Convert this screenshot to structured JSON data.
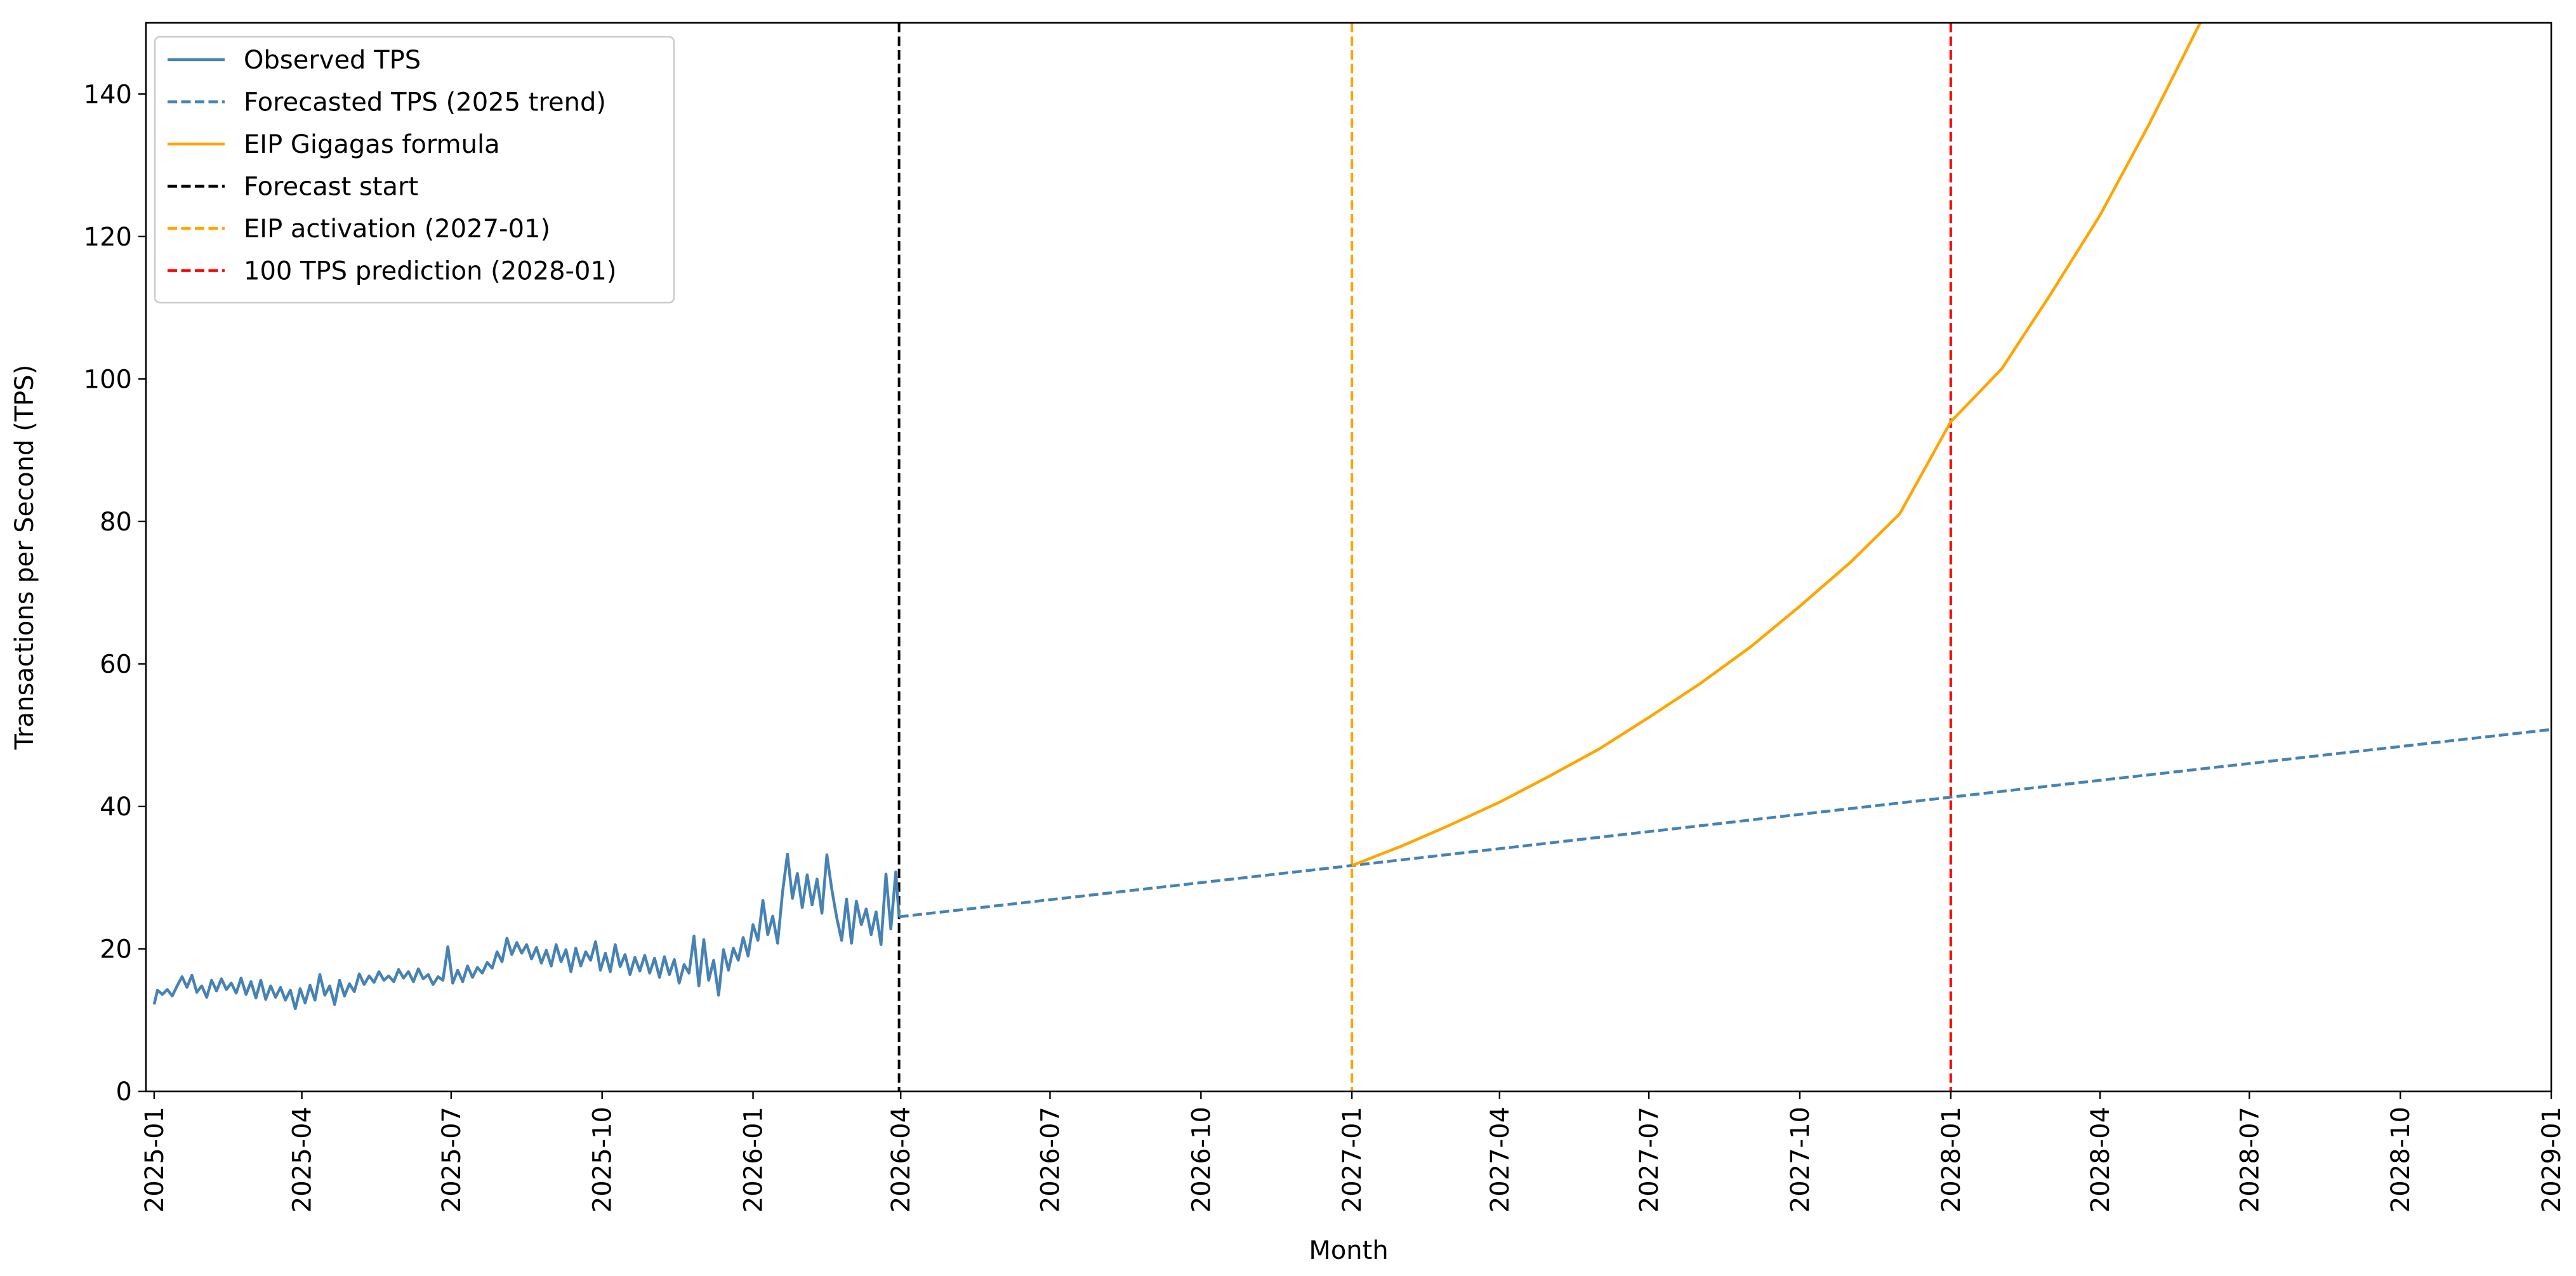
{
  "chart_data": {
    "type": "line",
    "title": "",
    "xlabel": "Month",
    "ylabel": "Transactions per Second (TPS)",
    "x_type": "date",
    "xlim": [
      "2024-12-27",
      "2029-01-01"
    ],
    "ylim": [
      0,
      150
    ],
    "x_ticks": [
      "2025-01",
      "2025-04",
      "2025-07",
      "2025-10",
      "2026-01",
      "2026-04",
      "2026-07",
      "2026-10",
      "2027-01",
      "2027-04",
      "2027-07",
      "2027-10",
      "2028-01",
      "2028-04",
      "2028-07",
      "2028-10",
      "2029-01"
    ],
    "y_ticks": [
      0,
      20,
      40,
      60,
      80,
      100,
      120,
      140
    ],
    "grid": false,
    "legend_position": "top-left",
    "series": [
      {
        "name": "Observed TPS",
        "color": "#4682B4",
        "style": "solid",
        "points": [
          [
            "2025-01-01",
            12.2
          ],
          [
            "2025-01-03",
            14.2
          ],
          [
            "2025-01-06",
            13.6
          ],
          [
            "2025-01-09",
            14.3
          ],
          [
            "2025-01-12",
            13.4
          ],
          [
            "2025-01-15",
            14.8
          ],
          [
            "2025-01-18",
            16.1
          ],
          [
            "2025-01-21",
            14.6
          ],
          [
            "2025-01-24",
            16.3
          ],
          [
            "2025-01-27",
            13.9
          ],
          [
            "2025-01-30",
            14.8
          ],
          [
            "2025-02-02",
            13.2
          ],
          [
            "2025-02-05",
            15.6
          ],
          [
            "2025-02-08",
            14.1
          ],
          [
            "2025-02-11",
            15.8
          ],
          [
            "2025-02-14",
            14.3
          ],
          [
            "2025-02-17",
            15.2
          ],
          [
            "2025-02-20",
            13.8
          ],
          [
            "2025-02-23",
            15.9
          ],
          [
            "2025-02-26",
            13.6
          ],
          [
            "2025-03-01",
            15.4
          ],
          [
            "2025-03-04",
            13.1
          ],
          [
            "2025-03-07",
            15.6
          ],
          [
            "2025-03-10",
            12.9
          ],
          [
            "2025-03-13",
            14.8
          ],
          [
            "2025-03-16",
            13.2
          ],
          [
            "2025-03-19",
            14.6
          ],
          [
            "2025-03-22",
            12.8
          ],
          [
            "2025-03-25",
            14.2
          ],
          [
            "2025-03-28",
            11.6
          ],
          [
            "2025-03-31",
            14.4
          ],
          [
            "2025-04-03",
            12.4
          ],
          [
            "2025-04-06",
            14.9
          ],
          [
            "2025-04-09",
            12.8
          ],
          [
            "2025-04-12",
            16.4
          ],
          [
            "2025-04-15",
            13.5
          ],
          [
            "2025-04-18",
            14.8
          ],
          [
            "2025-04-21",
            12.2
          ],
          [
            "2025-04-24",
            15.6
          ],
          [
            "2025-04-27",
            13.4
          ],
          [
            "2025-04-30",
            15.1
          ],
          [
            "2025-05-03",
            14.0
          ],
          [
            "2025-05-06",
            16.5
          ],
          [
            "2025-05-09",
            15.0
          ],
          [
            "2025-05-12",
            16.2
          ],
          [
            "2025-05-15",
            15.3
          ],
          [
            "2025-05-18",
            16.8
          ],
          [
            "2025-05-21",
            15.6
          ],
          [
            "2025-05-24",
            16.2
          ],
          [
            "2025-05-27",
            15.4
          ],
          [
            "2025-05-30",
            17.1
          ],
          [
            "2025-06-02",
            15.9
          ],
          [
            "2025-06-05",
            16.8
          ],
          [
            "2025-06-08",
            15.4
          ],
          [
            "2025-06-11",
            17.2
          ],
          [
            "2025-06-14",
            15.8
          ],
          [
            "2025-06-17",
            16.4
          ],
          [
            "2025-06-20",
            15.0
          ],
          [
            "2025-06-23",
            16.1
          ],
          [
            "2025-06-26",
            15.6
          ],
          [
            "2025-06-29",
            20.3
          ],
          [
            "2025-07-02",
            15.2
          ],
          [
            "2025-07-05",
            17.0
          ],
          [
            "2025-07-08",
            15.4
          ],
          [
            "2025-07-11",
            17.6
          ],
          [
            "2025-07-14",
            16.0
          ],
          [
            "2025-07-17",
            17.4
          ],
          [
            "2025-07-20",
            16.6
          ],
          [
            "2025-07-23",
            18.1
          ],
          [
            "2025-07-26",
            17.3
          ],
          [
            "2025-07-29",
            19.6
          ],
          [
            "2025-08-01",
            18.2
          ],
          [
            "2025-08-04",
            21.5
          ],
          [
            "2025-08-07",
            19.2
          ],
          [
            "2025-08-10",
            20.9
          ],
          [
            "2025-08-13",
            19.4
          ],
          [
            "2025-08-16",
            20.6
          ],
          [
            "2025-08-19",
            18.6
          ],
          [
            "2025-08-22",
            20.2
          ],
          [
            "2025-08-25",
            18.0
          ],
          [
            "2025-08-28",
            19.8
          ],
          [
            "2025-08-31",
            17.6
          ],
          [
            "2025-09-03",
            20.6
          ],
          [
            "2025-09-06",
            18.2
          ],
          [
            "2025-09-09",
            19.9
          ],
          [
            "2025-09-12",
            16.8
          ],
          [
            "2025-09-15",
            20.1
          ],
          [
            "2025-09-18",
            17.6
          ],
          [
            "2025-09-21",
            19.6
          ],
          [
            "2025-09-24",
            18.4
          ],
          [
            "2025-09-27",
            21.0
          ],
          [
            "2025-09-30",
            17.0
          ],
          [
            "2025-10-03",
            19.4
          ],
          [
            "2025-10-06",
            16.8
          ],
          [
            "2025-10-09",
            20.6
          ],
          [
            "2025-10-12",
            17.5
          ],
          [
            "2025-10-15",
            19.2
          ],
          [
            "2025-10-18",
            16.4
          ],
          [
            "2025-10-21",
            18.8
          ],
          [
            "2025-10-24",
            16.9
          ],
          [
            "2025-10-27",
            19.1
          ],
          [
            "2025-10-30",
            16.6
          ],
          [
            "2025-11-02",
            18.7
          ],
          [
            "2025-11-05",
            16.0
          ],
          [
            "2025-11-08",
            18.9
          ],
          [
            "2025-11-11",
            16.4
          ],
          [
            "2025-11-14",
            18.5
          ],
          [
            "2025-11-17",
            15.2
          ],
          [
            "2025-11-20",
            17.8
          ],
          [
            "2025-11-23",
            16.6
          ],
          [
            "2025-11-26",
            21.8
          ],
          [
            "2025-11-29",
            14.8
          ],
          [
            "2025-12-02",
            21.3
          ],
          [
            "2025-12-05",
            15.6
          ],
          [
            "2025-12-08",
            18.4
          ],
          [
            "2025-12-11",
            13.5
          ],
          [
            "2025-12-14",
            19.9
          ],
          [
            "2025-12-17",
            17.0
          ],
          [
            "2025-12-20",
            20.1
          ],
          [
            "2025-12-23",
            18.4
          ],
          [
            "2025-12-26",
            21.6
          ],
          [
            "2025-12-29",
            19.0
          ],
          [
            "2026-01-01",
            23.4
          ],
          [
            "2026-01-04",
            21.2
          ],
          [
            "2026-01-07",
            26.8
          ],
          [
            "2026-01-10",
            22.0
          ],
          [
            "2026-01-13",
            24.6
          ],
          [
            "2026-01-16",
            20.8
          ],
          [
            "2026-01-19",
            28.0
          ],
          [
            "2026-01-22",
            33.3
          ],
          [
            "2026-01-25",
            27.1
          ],
          [
            "2026-01-28",
            30.6
          ],
          [
            "2026-01-31",
            25.8
          ],
          [
            "2026-02-03",
            30.4
          ],
          [
            "2026-02-06",
            26.2
          ],
          [
            "2026-02-09",
            29.8
          ],
          [
            "2026-02-12",
            25.0
          ],
          [
            "2026-02-15",
            33.2
          ],
          [
            "2026-02-18",
            28.4
          ],
          [
            "2026-02-21",
            24.4
          ],
          [
            "2026-02-24",
            21.2
          ],
          [
            "2026-02-27",
            27.0
          ],
          [
            "2026-03-02",
            20.8
          ],
          [
            "2026-03-05",
            26.7
          ],
          [
            "2026-03-08",
            23.4
          ],
          [
            "2026-03-11",
            25.6
          ],
          [
            "2026-03-14",
            22.0
          ],
          [
            "2026-03-17",
            25.2
          ],
          [
            "2026-03-20",
            20.6
          ],
          [
            "2026-03-23",
            30.5
          ],
          [
            "2026-03-26",
            22.8
          ],
          [
            "2026-03-29",
            30.8
          ],
          [
            "2026-03-31",
            24.5
          ]
        ]
      },
      {
        "name": "Forecasted TPS (2025 trend)",
        "color": "#4682B4",
        "style": "dashed",
        "points": [
          [
            "2026-03-31",
            24.5
          ],
          [
            "2027-01-01",
            31.7
          ],
          [
            "2028-01-01",
            41.3
          ],
          [
            "2029-01-01",
            50.8
          ]
        ]
      },
      {
        "name": "EIP Gigagas formula",
        "color": "#FFA500",
        "style": "solid",
        "points": [
          [
            "2027-01-01",
            31.7
          ],
          [
            "2027-02-01",
            34.5
          ],
          [
            "2027-03-01",
            37.3
          ],
          [
            "2027-04-01",
            40.6
          ],
          [
            "2027-05-01",
            44.2
          ],
          [
            "2027-06-01",
            48.1
          ],
          [
            "2027-07-01",
            52.5
          ],
          [
            "2027-08-01",
            57.2
          ],
          [
            "2027-09-01",
            62.4
          ],
          [
            "2027-10-01",
            68.1
          ],
          [
            "2027-11-01",
            74.3
          ],
          [
            "2027-12-01",
            81.1
          ],
          [
            "2028-01-01",
            94.0
          ],
          [
            "2028-02-01",
            101.4
          ],
          [
            "2028-03-01",
            111.6
          ],
          [
            "2028-04-01",
            123.0
          ],
          [
            "2028-05-01",
            135.8
          ],
          [
            "2028-06-01",
            150.0
          ]
        ]
      }
    ],
    "vlines": [
      {
        "name": "Forecast start",
        "x": "2026-03-31",
        "color": "#000000",
        "style": "dashed"
      },
      {
        "name": "EIP activation (2027-01)",
        "x": "2027-01-01",
        "color": "#FFA500",
        "style": "dashed"
      },
      {
        "name": "100 TPS prediction (2028-01)",
        "x": "2028-01-01",
        "color": "#FF0000",
        "style": "dashed"
      }
    ],
    "legend": [
      {
        "label": "Observed TPS",
        "color": "#4682B4",
        "style": "solid"
      },
      {
        "label": "Forecasted TPS (2025 trend)",
        "color": "#4682B4",
        "style": "dashed"
      },
      {
        "label": "EIP Gigagas formula",
        "color": "#FFA500",
        "style": "solid"
      },
      {
        "label": "Forecast start",
        "color": "#000000",
        "style": "dashed"
      },
      {
        "label": "EIP activation (2027-01)",
        "color": "#FFA500",
        "style": "dashed"
      },
      {
        "label": "100 TPS prediction (2028-01)",
        "color": "#FF0000",
        "style": "dashed"
      }
    ]
  }
}
